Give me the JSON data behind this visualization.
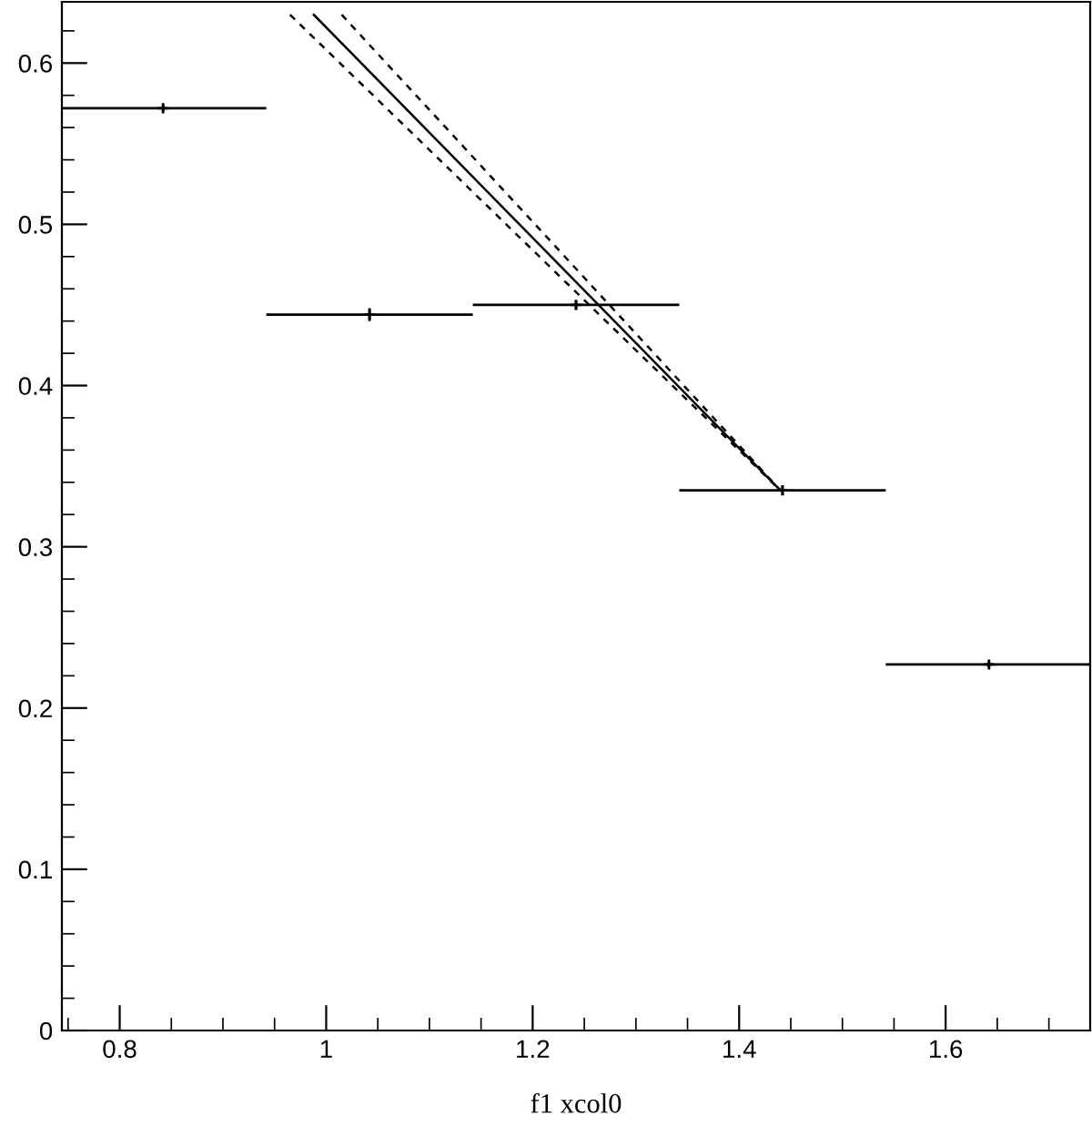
{
  "chart_data": {
    "type": "scatter",
    "xlabel": "f1 xcol0",
    "grid": false,
    "xlim": [
      0.744,
      1.74
    ],
    "ylim": [
      0,
      0.638
    ],
    "xticks": [
      0.8,
      1,
      1.2,
      1.4,
      1.6
    ],
    "yticks": [
      0,
      0.1,
      0.2,
      0.3,
      0.4,
      0.5,
      0.6
    ],
    "series": [
      {
        "color": "#000000",
        "marker": "cross",
        "x": [
          0.842,
          1.042,
          1.242,
          1.442,
          1.642
        ],
        "values": [
          0.572,
          0.444,
          0.45,
          0.335,
          0.227
        ],
        "errors": [
          0.002,
          0.004,
          0.003,
          0.003,
          0.002
        ],
        "xerrors": [
          0.1,
          0.1,
          0.1,
          0.1,
          0.1
        ]
      },
      {
        "type": "line",
        "color": "#000000",
        "line_style": "solid",
        "marker": "none",
        "x": [
          0.988,
          1.44
        ],
        "values": [
          0.63,
          0.335
        ]
      },
      {
        "type": "line",
        "color": "#000000",
        "line_style": "dashed",
        "marker": "none",
        "x": [
          1.015,
          1.44
        ],
        "values": [
          0.63,
          0.335
        ]
      },
      {
        "type": "line",
        "color": "#000000",
        "line_style": "dashed",
        "marker": "none",
        "x": [
          0.965,
          1.44
        ],
        "values": [
          0.63,
          0.335
        ]
      }
    ]
  }
}
